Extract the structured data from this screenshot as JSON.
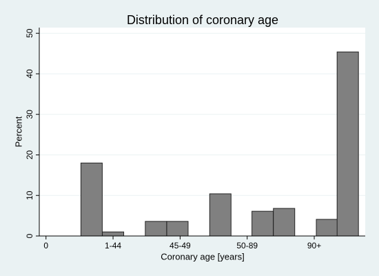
{
  "chart_data": {
    "type": "bar",
    "title": "Distribution of coronary age",
    "x_label": "Coronary age [years]",
    "y_label": "Percent",
    "x": [
      0.68,
      1.0,
      1.64,
      1.96,
      2.6,
      3.23,
      3.55,
      4.19,
      4.5
    ],
    "values": [
      18.0,
      1.0,
      3.6,
      3.6,
      10.4,
      6.1,
      6.8,
      4.1,
      45.4
    ],
    "color": "#808080",
    "xlim": [
      -0.1,
      4.76
    ],
    "xticks": [
      0,
      {
        "value": 1,
        "label": "1-44"
      },
      {
        "value": 2,
        "label": "45-49"
      },
      {
        "value": 3,
        "label": "50-89"
      },
      {
        "value": 4,
        "label": "90+"
      }
    ],
    "ylim": [
      0,
      51.4
    ],
    "yticks": [
      0,
      10,
      20,
      30,
      40,
      50
    ],
    "grid": true
  }
}
